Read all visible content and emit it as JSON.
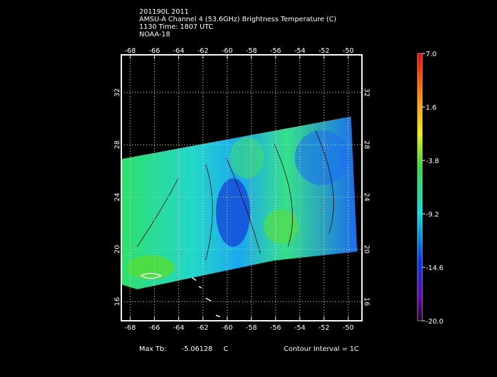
{
  "header": {
    "lines": [
      "201190L 2011",
      "AMSU-A Channel 4 (53.6GHz) Brightness Temperature (C)",
      "1130 Time: 1807 UTC",
      "NOAA-18"
    ]
  },
  "map": {
    "lon_ticks": [
      "-68",
      "-66",
      "-64",
      "-62",
      "-60",
      "-58",
      "-56",
      "-54",
      "-52",
      "-50"
    ],
    "lat_ticks": [
      "16",
      "20",
      "24",
      "28",
      "32"
    ]
  },
  "colorbar": {
    "labels": [
      "7.0",
      "1.6",
      "-3.8",
      "-9.2",
      "-14.6",
      "-20.0"
    ]
  },
  "footer": {
    "max_label": "Max Tb:",
    "max_value": "-5.06128",
    "max_unit": "C",
    "contour": "Contour Interval = 1C"
  }
}
